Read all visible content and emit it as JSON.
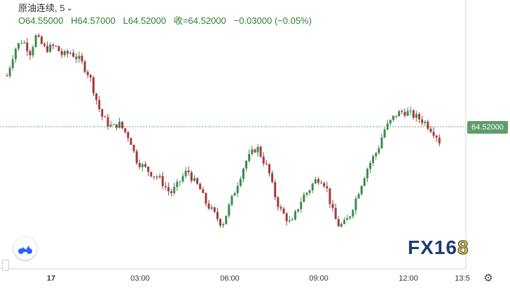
{
  "legend": {
    "symbol": "原油连续",
    "interval": "5",
    "dropdown_icon": "chevron-down-icon",
    "open": "O64.55000",
    "high": "H64.57000",
    "low": "L64.52000",
    "close": "收=64.52000",
    "change": "−0.03000 (−0.05%)"
  },
  "last_price": "64.52000",
  "settings_icon": "gear-icon",
  "watermark": {
    "text": "FX16",
    "accent": "8"
  },
  "colors": {
    "up": "#26a69a",
    "down": "#ef5350",
    "body_up": "#3c8a4e",
    "body_down": "#a33a3a",
    "price_line": "#5d9d6b"
  },
  "chart_data": {
    "type": "candlestick",
    "symbol": "原油连续",
    "interval": "5",
    "x_ticks": [
      "17",
      "03:00",
      "06:00",
      "09:00",
      "12:00",
      "13:5"
    ],
    "y_range": [
      63.85,
      65.3
    ],
    "last": 64.52,
    "close_path": [
      [
        0,
        64.95
      ],
      [
        8,
        65.12
      ],
      [
        16,
        65.18
      ],
      [
        24,
        65.1
      ],
      [
        30,
        65.2
      ],
      [
        40,
        65.12
      ],
      [
        50,
        65.14
      ],
      [
        58,
        65.08
      ],
      [
        66,
        65.1
      ],
      [
        76,
        65.05
      ],
      [
        86,
        64.95
      ],
      [
        92,
        64.82
      ],
      [
        98,
        64.7
      ],
      [
        104,
        64.65
      ],
      [
        110,
        64.62
      ],
      [
        116,
        64.65
      ],
      [
        122,
        64.6
      ],
      [
        128,
        64.55
      ],
      [
        134,
        64.42
      ],
      [
        140,
        64.38
      ],
      [
        146,
        64.35
      ],
      [
        152,
        64.32
      ],
      [
        158,
        64.3
      ],
      [
        164,
        64.25
      ],
      [
        170,
        64.2
      ],
      [
        176,
        64.24
      ],
      [
        182,
        64.3
      ],
      [
        188,
        64.35
      ],
      [
        194,
        64.28
      ],
      [
        200,
        64.24
      ],
      [
        206,
        64.15
      ],
      [
        212,
        64.1
      ],
      [
        218,
        64.05
      ],
      [
        224,
        64.0
      ],
      [
        230,
        64.1
      ],
      [
        236,
        64.2
      ],
      [
        242,
        64.3
      ],
      [
        248,
        64.4
      ],
      [
        254,
        64.45
      ],
      [
        260,
        64.5
      ],
      [
        266,
        64.42
      ],
      [
        272,
        64.35
      ],
      [
        278,
        64.2
      ],
      [
        284,
        64.1
      ],
      [
        290,
        64.05
      ],
      [
        296,
        64.0
      ],
      [
        302,
        64.1
      ],
      [
        308,
        64.18
      ],
      [
        314,
        64.22
      ],
      [
        320,
        64.28
      ],
      [
        326,
        64.3
      ],
      [
        332,
        64.25
      ],
      [
        338,
        64.1
      ],
      [
        344,
        64.0
      ],
      [
        350,
        64.0
      ],
      [
        356,
        64.05
      ],
      [
        362,
        64.15
      ],
      [
        368,
        64.25
      ],
      [
        374,
        64.35
      ],
      [
        380,
        64.42
      ],
      [
        386,
        64.48
      ],
      [
        392,
        64.6
      ],
      [
        398,
        64.65
      ],
      [
        404,
        64.7
      ],
      [
        410,
        64.72
      ],
      [
        416,
        64.72
      ],
      [
        422,
        64.7
      ],
      [
        428,
        64.68
      ],
      [
        434,
        64.66
      ],
      [
        440,
        64.62
      ],
      [
        446,
        64.58
      ],
      [
        452,
        64.52
      ]
    ]
  }
}
